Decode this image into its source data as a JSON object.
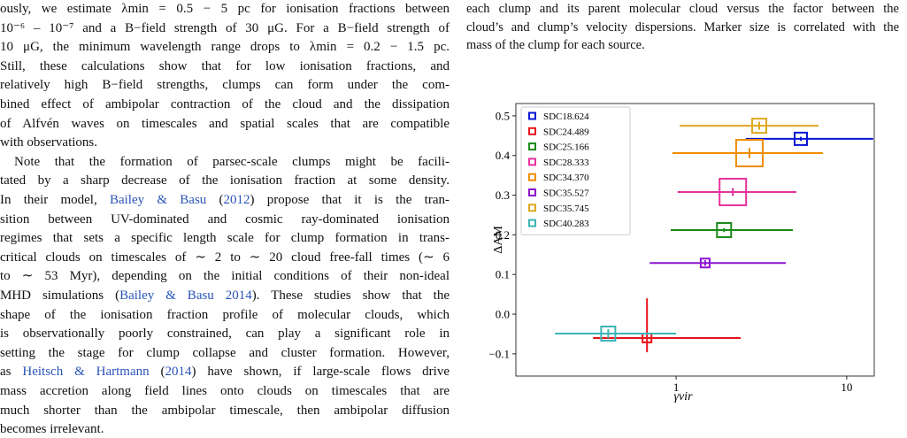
{
  "left_column": {
    "lines": [
      [
        {
          "t": "ously, we estimate λmin = 0.5 − 5 pc for ionisation fractions between"
        }
      ],
      [
        {
          "t": "10⁻⁶ – 10⁻⁷ and a B−field strength of 30 μG. For a B−field strength of"
        }
      ],
      [
        {
          "t": "10 μG, the minimum wavelength range drops to λmin = 0.2 − 1.5 pc."
        }
      ],
      [
        {
          "t": "Still, these calculations show that for low ionisation fractions, and"
        }
      ],
      [
        {
          "t": "relatively high B−field strengths, clumps can form under the com-"
        }
      ],
      [
        {
          "t": "bined effect of ambipolar contraction of the cloud and the dissipation"
        }
      ],
      [
        {
          "t": "of Alfvén waves on timescales and spatial scales that are compatible"
        }
      ],
      [
        {
          "t": "with observations."
        }
      ],
      [
        {
          "t": "Note that the formation of parsec-scale clumps might be facili-"
        }
      ],
      [
        {
          "t": "tated by a sharp decrease of the ionisation fraction at some density."
        }
      ],
      [
        {
          "t": "In their model, "
        },
        {
          "t": "Bailey & Basu",
          "cite": true
        },
        {
          "t": " ("
        },
        {
          "t": "2012",
          "cite": true
        },
        {
          "t": ") propose that it is the tran-"
        }
      ],
      [
        {
          "t": "sition between UV-dominated and cosmic ray-dominated ionisation"
        }
      ],
      [
        {
          "t": "regimes that sets a specific length scale for clump formation in trans-"
        }
      ],
      [
        {
          "t": "critical clouds on timescales of ∼ 2 to ∼ 20 cloud free-fall times (∼ 6"
        }
      ],
      [
        {
          "t": "to ∼ 53 Myr), depending on the initial conditions of their non-ideal"
        }
      ],
      [
        {
          "t": "MHD simulations ("
        },
        {
          "t": "Bailey & Basu 2014",
          "cite": true
        },
        {
          "t": "). These studies show that the"
        }
      ],
      [
        {
          "t": "shape of the ionisation fraction profile of molecular clouds, which"
        }
      ],
      [
        {
          "t": "is observationally poorly constrained, can play a significant role in"
        }
      ],
      [
        {
          "t": "setting the stage for clump collapse and cluster formation. However,"
        }
      ],
      [
        {
          "t": "as "
        },
        {
          "t": "Heitsch & Hartmann",
          "cite": true
        },
        {
          "t": " ("
        },
        {
          "t": "2014",
          "cite": true
        },
        {
          "t": ") have shown, if large-scale flows drive"
        }
      ],
      [
        {
          "t": "mass accretion along field lines onto clouds on timescales that are"
        }
      ],
      [
        {
          "t": "much shorter than the ambipolar timescale, then ambipolar diffusion"
        }
      ],
      [
        {
          "t": "becomes irrelevant."
        }
      ]
    ]
  },
  "caption": {
    "lines": [
      "each clump and its parent molecular cloud versus the factor between the",
      "cloud’s and clump’s velocity dispersions. Marker size is correlated with the",
      "mass of the clump for each source."
    ]
  },
  "chart_data": {
    "type": "scatter",
    "x_label": "γvir",
    "y_label": "ΔAM",
    "xscale": "log",
    "xlim": [
      0.115,
      14.5
    ],
    "xticks": [
      1,
      10
    ],
    "ylim": [
      -0.156,
      0.531
    ],
    "yticks": [
      {
        "value": -0.1,
        "label": "−0.1"
      },
      {
        "value": 0,
        "label": "0.0"
      },
      0.1,
      0.2,
      0.3,
      0.4,
      0.5
    ],
    "legend": "upper left",
    "series": [
      {
        "name": "SDC18.624",
        "color": "#0a14d2",
        "x": 5.38,
        "y": 0.442,
        "x_lo": 2.56,
        "x_hi": 14.3,
        "y_lo": 0.437,
        "y_hi": 0.447,
        "size": 14
      },
      {
        "name": "SDC24.489",
        "color": "#e8141b",
        "x": 0.675,
        "y": -0.06,
        "x_lo": 0.326,
        "x_hi": 2.39,
        "y_lo": -0.096,
        "y_hi": 0.04,
        "size": 10
      },
      {
        "name": "SDC25.166",
        "color": "#1a8a1a",
        "x": 1.91,
        "y": 0.212,
        "x_lo": 0.93,
        "x_hi": 4.83,
        "y_lo": 0.207,
        "y_hi": 0.217,
        "size": 16
      },
      {
        "name": "SDC28.333",
        "color": "#e6329b",
        "x": 2.15,
        "y": 0.308,
        "x_lo": 1.02,
        "x_hi": 5.07,
        "y_lo": 0.298,
        "y_hi": 0.318,
        "size": 30
      },
      {
        "name": "SDC34.370",
        "color": "#f08c00",
        "x": 2.69,
        "y": 0.406,
        "x_lo": 0.95,
        "x_hi": 7.25,
        "y_lo": 0.393,
        "y_hi": 0.419,
        "size": 30
      },
      {
        "name": "SDC35.527",
        "color": "#8c14d0",
        "x": 1.48,
        "y": 0.129,
        "x_lo": 0.7,
        "x_hi": 4.39,
        "y_lo": 0.122,
        "y_hi": 0.136,
        "size": 10
      },
      {
        "name": "SDC35.745",
        "color": "#e0a81e",
        "x": 3.07,
        "y": 0.475,
        "x_lo": 1.05,
        "x_hi": 6.83,
        "y_lo": 0.465,
        "y_hi": 0.485,
        "size": 16
      },
      {
        "name": "SDC40.283",
        "color": "#3cb4b4",
        "x": 0.4,
        "y": -0.049,
        "x_lo": 0.195,
        "x_hi": 1.0,
        "y_lo": -0.06,
        "y_hi": -0.038,
        "size": 16
      }
    ]
  }
}
